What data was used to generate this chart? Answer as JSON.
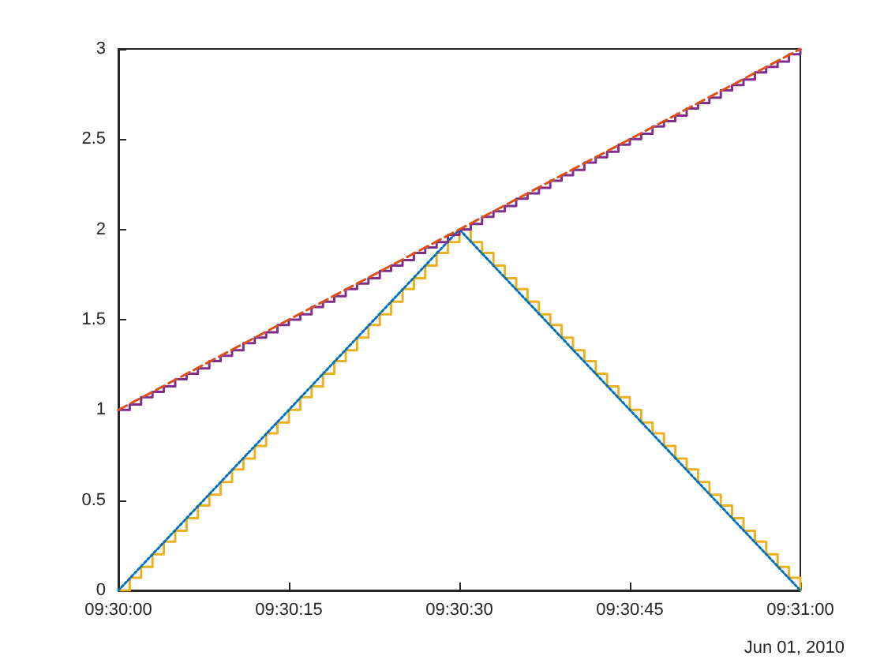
{
  "chart_data": {
    "type": "step",
    "xlabel": "Jun 01, 2010",
    "grid": false,
    "marker": "none",
    "x": [
      "2010-06-01T09:30:00",
      "2010-06-01T09:30:01",
      "2010-06-01T09:30:02",
      "2010-06-01T09:30:03",
      "2010-06-01T09:30:04",
      "2010-06-01T09:30:05",
      "2010-06-01T09:30:06",
      "2010-06-01T09:30:07",
      "2010-06-01T09:30:08",
      "2010-06-01T09:30:09",
      "2010-06-01T09:30:10",
      "2010-06-01T09:30:11",
      "2010-06-01T09:30:12",
      "2010-06-01T09:30:13",
      "2010-06-01T09:30:14",
      "2010-06-01T09:30:15",
      "2010-06-01T09:30:16",
      "2010-06-01T09:30:17",
      "2010-06-01T09:30:18",
      "2010-06-01T09:30:19",
      "2010-06-01T09:30:20",
      "2010-06-01T09:30:21",
      "2010-06-01T09:30:22",
      "2010-06-01T09:30:23",
      "2010-06-01T09:30:24",
      "2010-06-01T09:30:25",
      "2010-06-01T09:30:26",
      "2010-06-01T09:30:27",
      "2010-06-01T09:30:28",
      "2010-06-01T09:30:29",
      "2010-06-01T09:30:30",
      "2010-06-01T09:30:31",
      "2010-06-01T09:30:32",
      "2010-06-01T09:30:33",
      "2010-06-01T09:30:34",
      "2010-06-01T09:30:35",
      "2010-06-01T09:30:36",
      "2010-06-01T09:30:37",
      "2010-06-01T09:30:38",
      "2010-06-01T09:30:39",
      "2010-06-01T09:30:40",
      "2010-06-01T09:30:41",
      "2010-06-01T09:30:42",
      "2010-06-01T09:30:43",
      "2010-06-01T09:30:44",
      "2010-06-01T09:30:45",
      "2010-06-01T09:30:46",
      "2010-06-01T09:30:47",
      "2010-06-01T09:30:48",
      "2010-06-01T09:30:49",
      "2010-06-01T09:30:50",
      "2010-06-01T09:30:51",
      "2010-06-01T09:30:52",
      "2010-06-01T09:30:53",
      "2010-06-01T09:30:54",
      "2010-06-01T09:30:55",
      "2010-06-01T09:30:56",
      "2010-06-01T09:30:57",
      "2010-06-01T09:30:58",
      "2010-06-01T09:30:59",
      "2010-06-01T09:31:00"
    ],
    "series": [
      {
        "color": "#edb120",
        "line_style": "solid",
        "values": [
          0,
          0.07,
          0.13,
          0.2,
          0.27,
          0.33,
          0.4,
          0.47,
          0.53,
          0.6,
          0.67,
          0.73,
          0.8,
          0.87,
          0.93,
          1,
          1.07,
          1.13,
          1.2,
          1.27,
          1.33,
          1.4,
          1.47,
          1.53,
          1.6,
          1.67,
          1.73,
          1.8,
          1.87,
          1.93,
          2,
          1.93,
          1.87,
          1.8,
          1.73,
          1.67,
          1.6,
          1.53,
          1.47,
          1.4,
          1.33,
          1.27,
          1.2,
          1.13,
          1.07,
          1,
          0.93,
          0.87,
          0.8,
          0.73,
          0.67,
          0.6,
          0.53,
          0.47,
          0.4,
          0.33,
          0.27,
          0.2,
          0.13,
          0.07,
          0
        ]
      },
      {
        "type": "line",
        "color": "#0072bd",
        "line_style": "dotted",
        "x": [
          "2010-06-01T09:30:00",
          "2010-06-01T09:30:30",
          "2010-06-01T09:31:00"
        ],
        "values": [
          0,
          2,
          0
        ]
      },
      {
        "color": "#7e2f8e",
        "line_style": "solid",
        "values": [
          1,
          1.03,
          1.07,
          1.1,
          1.13,
          1.17,
          1.2,
          1.23,
          1.27,
          1.3,
          1.33,
          1.37,
          1.4,
          1.43,
          1.47,
          1.5,
          1.53,
          1.57,
          1.6,
          1.63,
          1.67,
          1.7,
          1.73,
          1.77,
          1.8,
          1.83,
          1.87,
          1.9,
          1.93,
          1.97,
          2,
          2.03,
          2.07,
          2.1,
          2.13,
          2.17,
          2.2,
          2.23,
          2.27,
          2.3,
          2.33,
          2.37,
          2.4,
          2.43,
          2.47,
          2.5,
          2.53,
          2.57,
          2.6,
          2.63,
          2.67,
          2.7,
          2.73,
          2.77,
          2.8,
          2.83,
          2.87,
          2.9,
          2.93,
          2.97,
          3
        ]
      },
      {
        "type": "line",
        "color": "#d95319",
        "line_style": "dashed",
        "x": [
          "2010-06-01T09:30:00",
          "2010-06-01T09:31:00"
        ],
        "values": [
          1,
          3
        ]
      }
    ],
    "xlim": [
      "2010-06-01T09:30:00",
      "2010-06-01T09:31:00"
    ],
    "xticks": [
      {
        "value": "2010-06-01T09:30:00",
        "label": "09:30:00"
      },
      {
        "value": "2010-06-01T09:30:15",
        "label": "09:30:15"
      },
      {
        "value": "2010-06-01T09:30:30",
        "label": "09:30:30"
      },
      {
        "value": "2010-06-01T09:30:45",
        "label": "09:30:45"
      },
      {
        "value": "2010-06-01T09:31:00",
        "label": "09:31:00"
      }
    ],
    "ylim": [
      0,
      3
    ],
    "yticks": [
      0,
      0.5,
      1,
      1.5,
      2,
      2.5,
      3
    ]
  }
}
